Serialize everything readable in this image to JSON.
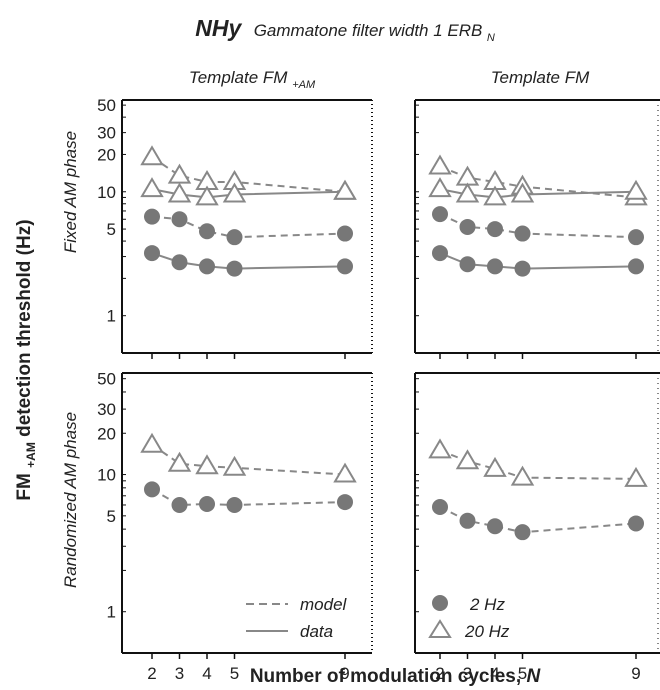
{
  "figure": {
    "title_main": "NHy",
    "title_sub": "Gammatone filter width 1 ERB",
    "title_sub_subscript": "N",
    "col_titles": [
      {
        "base": "Template FM",
        "sub": "+AM"
      },
      {
        "base": "Template FM",
        "sub": ""
      }
    ],
    "row_titles": [
      "Fixed AM phase",
      "Randomized AM phase"
    ],
    "ylabel_base": "FM",
    "ylabel_sub": "+AM",
    "ylabel_rest": " detection threshold (Hz)",
    "xlabel_base": "Number of modulation cycles, ",
    "xlabel_var": "N",
    "legend_line": [
      {
        "label": "model",
        "style": "dashed"
      },
      {
        "label": "data",
        "style": "solid"
      }
    ],
    "legend_marker": [
      {
        "label": "2 Hz",
        "marker": "circle"
      },
      {
        "label": "20 Hz",
        "marker": "triangle"
      }
    ],
    "colors": {
      "series": "#888888",
      "circle": "#777777",
      "axes": "#111111"
    }
  },
  "chart_data": [
    {
      "type": "line",
      "panel": "top-left",
      "x": [
        2,
        3,
        4,
        5,
        9
      ],
      "xticks": [
        "2",
        "3",
        "4",
        "5",
        "9"
      ],
      "yscale": "log",
      "ylim": [
        0.5,
        55
      ],
      "yticks": [
        "1",
        "5",
        "10",
        "20",
        "30",
        "50"
      ],
      "series": [
        {
          "name": "20 Hz model",
          "marker": "triangle",
          "dash": true,
          "values": [
            19,
            13.5,
            12,
            12,
            10
          ]
        },
        {
          "name": "20 Hz data",
          "marker": "triangle",
          "dash": false,
          "values": [
            10.5,
            9.5,
            9,
            9.5,
            10
          ]
        },
        {
          "name": "2 Hz model",
          "marker": "circle",
          "dash": true,
          "values": [
            6.3,
            6,
            4.8,
            4.3,
            4.6
          ]
        },
        {
          "name": "2 Hz data",
          "marker": "circle",
          "dash": false,
          "values": [
            3.2,
            2.7,
            2.5,
            2.4,
            2.5
          ]
        }
      ]
    },
    {
      "type": "line",
      "panel": "top-right",
      "x": [
        2,
        3,
        4,
        5,
        9
      ],
      "xticks": [
        "2",
        "3",
        "4",
        "5",
        "9"
      ],
      "yscale": "log",
      "ylim": [
        0.5,
        55
      ],
      "yticks": [],
      "series": [
        {
          "name": "20 Hz model",
          "marker": "triangle",
          "dash": true,
          "values": [
            16,
            13,
            12,
            11,
            9
          ]
        },
        {
          "name": "20 Hz data",
          "marker": "triangle",
          "dash": false,
          "values": [
            10.5,
            9.5,
            9,
            9.5,
            10
          ]
        },
        {
          "name": "2 Hz model",
          "marker": "circle",
          "dash": true,
          "values": [
            6.6,
            5.2,
            5,
            4.6,
            4.3
          ]
        },
        {
          "name": "2 Hz data",
          "marker": "circle",
          "dash": false,
          "values": [
            3.2,
            2.6,
            2.5,
            2.4,
            2.5
          ]
        }
      ]
    },
    {
      "type": "line",
      "panel": "bottom-left",
      "x": [
        2,
        3,
        4,
        5,
        9
      ],
      "xticks": [
        "2",
        "3",
        "4",
        "5",
        "9"
      ],
      "yscale": "log",
      "ylim": [
        0.5,
        55
      ],
      "yticks": [
        "1",
        "5",
        "10",
        "20",
        "30",
        "50"
      ],
      "series": [
        {
          "name": "20 Hz model",
          "marker": "triangle",
          "dash": true,
          "values": [
            16.5,
            12,
            11.5,
            11.2,
            10
          ]
        },
        {
          "name": "2 Hz model",
          "marker": "circle",
          "dash": true,
          "values": [
            7.8,
            6,
            6.1,
            6,
            6.3
          ]
        }
      ]
    },
    {
      "type": "line",
      "panel": "bottom-right",
      "x": [
        2,
        3,
        4,
        5,
        9
      ],
      "xticks": [
        "2",
        "3",
        "4",
        "5",
        "9"
      ],
      "yscale": "log",
      "ylim": [
        0.5,
        55
      ],
      "yticks": [],
      "series": [
        {
          "name": "20 Hz model",
          "marker": "triangle",
          "dash": true,
          "values": [
            15,
            12.5,
            11,
            9.5,
            9.3
          ]
        },
        {
          "name": "2 Hz model",
          "marker": "circle",
          "dash": true,
          "values": [
            5.8,
            4.6,
            4.2,
            3.8,
            4.4
          ]
        }
      ]
    }
  ]
}
